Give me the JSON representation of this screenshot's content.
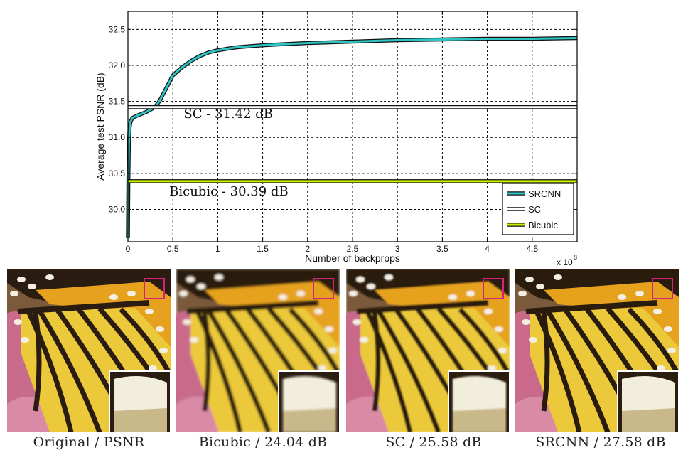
{
  "chart_data": {
    "type": "line",
    "ylabel": "Average test PSNR (dB)",
    "xlabel": "Number of backprops",
    "x_multiplier": "x 10",
    "x_multiplier_exp": "8",
    "xlim": [
      0,
      5
    ],
    "ylim": [
      29.55,
      32.75
    ],
    "x_ticks": [
      0,
      0.5,
      1,
      1.5,
      2,
      2.5,
      3,
      3.5,
      4,
      4.5
    ],
    "x_tick_labels": [
      "0",
      "0.5",
      "1",
      "1.5",
      "2",
      "2.5",
      "3",
      "3.5",
      "4",
      "4.5"
    ],
    "y_ticks": [
      30.0,
      30.5,
      31.0,
      31.5,
      32.0,
      32.5
    ],
    "y_tick_labels": [
      "30.0",
      "30.5",
      "31.0",
      "31.5",
      "32.0",
      "32.5"
    ],
    "grid": true,
    "legend_position": "bottom-right",
    "series": [
      {
        "name": "SRCNN",
        "color": "#2ec4c4",
        "x": [
          0,
          0.005,
          0.01,
          0.02,
          0.03,
          0.05,
          0.1,
          0.2,
          0.3,
          0.35,
          0.4,
          0.5,
          0.6,
          0.7,
          0.8,
          0.9,
          1.0,
          1.2,
          1.5,
          2.0,
          2.5,
          3.0,
          3.5,
          4.0,
          4.5,
          5.0
        ],
        "y": [
          29.6,
          30.4,
          30.9,
          31.15,
          31.22,
          31.27,
          31.3,
          31.35,
          31.42,
          31.5,
          31.62,
          31.86,
          31.97,
          32.06,
          32.13,
          32.18,
          32.21,
          32.25,
          32.28,
          32.31,
          32.33,
          32.35,
          32.36,
          32.37,
          32.37,
          32.38
        ]
      },
      {
        "name": "SC",
        "color": "#ffffff",
        "x": [
          0,
          5
        ],
        "y": [
          31.42,
          31.42
        ]
      },
      {
        "name": "Bicubic",
        "color": "#c8f000",
        "x": [
          0,
          5
        ],
        "y": [
          30.39,
          30.39
        ]
      }
    ],
    "annotations": [
      {
        "text": "SC - 31.42 dB",
        "x": 0.62,
        "y": 31.27
      },
      {
        "text": "Bicubic - 30.39 dB",
        "x": 0.46,
        "y": 30.19
      }
    ]
  },
  "panels": [
    {
      "label": "Original / PSNR",
      "quality": "original"
    },
    {
      "label": "Bicubic / 24.04 dB",
      "quality": "blurry"
    },
    {
      "label": "SC / 25.58 dB",
      "quality": "soft"
    },
    {
      "label": "SRCNN / 27.58 dB",
      "quality": "sharp"
    }
  ],
  "colors": {
    "wing_orange": "#e6a21e",
    "wing_yellow": "#ecc93a",
    "vein_dark": "#2a1c10",
    "background_pink": "#c96b8a",
    "highlight_box": "#d6227a"
  }
}
